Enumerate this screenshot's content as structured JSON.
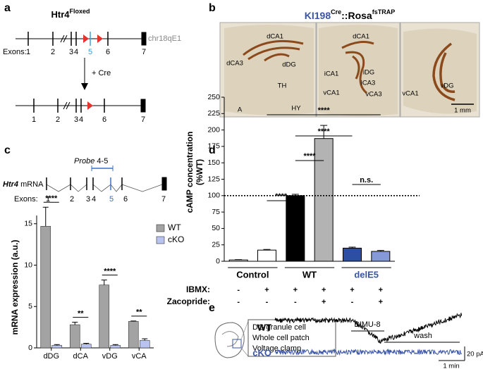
{
  "panel_labels": [
    "a",
    "b",
    "c",
    "d",
    "e"
  ],
  "panel_a": {
    "gene": "Htr4",
    "gene_sup": "Floxed",
    "locus": "chr18qE1",
    "exons_label": "Exons:",
    "exons": [
      "1",
      "2",
      "3",
      "4",
      "5",
      "6",
      "7"
    ],
    "step": "+ Cre",
    "exons_after": [
      "1",
      "2",
      "3",
      "4",
      "6",
      "7"
    ]
  },
  "panel_b": {
    "title_parts": [
      "KI198",
      "Cre",
      "::Rosa",
      "fsTRAP"
    ],
    "sections": [
      [
        "dCA1",
        "dCA3",
        "dDG",
        "TH",
        "A",
        "HY"
      ],
      [
        "dCA1",
        "iCA1",
        "iDG",
        "iCA3",
        "vCA1",
        "vCA3"
      ],
      [
        "vCA1",
        "vDG"
      ]
    ],
    "scale_bar": "1 mm"
  },
  "panel_c": {
    "probe": "Probe",
    "probe_exons": "4-5",
    "transcript": "Htr4",
    "transcript_suffix": "mRNA",
    "exons_label": "Exons:",
    "exons": [
      "1",
      "2",
      "3",
      "4",
      "5",
      "6",
      "7"
    ]
  },
  "panel_e": {
    "cell_box": [
      "DG granule cell",
      "Whole cell patch",
      "Voltage clamp"
    ],
    "traces": [
      "WT",
      "cKO"
    ],
    "drug": "BIMU-8",
    "washout": "wash",
    "scale_y": "20 pA",
    "scale_x": "1 min"
  },
  "chart_data": [
    {
      "type": "bar",
      "ylabel": "mRNA expression (a.u.)",
      "categories": [
        "dDG",
        "dCA",
        "vDG",
        "vCA"
      ],
      "series": [
        {
          "name": "WT",
          "color": "#a3a3a3",
          "values": [
            14.7,
            2.8,
            7.6,
            3.2
          ],
          "errors": [
            2.3,
            0.3,
            0.6,
            0.05
          ]
        },
        {
          "name": "cKO",
          "color": "#b9c3ef",
          "values": [
            0.3,
            0.45,
            0.3,
            0.9
          ],
          "errors": [
            0.1,
            0.1,
            0.1,
            0.2
          ]
        }
      ],
      "ylim": [
        0,
        16
      ],
      "yticks": [
        0,
        5,
        10,
        15
      ],
      "significance": [
        "****",
        "**",
        "****",
        "**"
      ],
      "legend": "upper right"
    },
    {
      "type": "bar",
      "ylabel": "cAMP concentration",
      "ylabel_unit": "(%WT)",
      "categories": [
        null,
        null,
        null,
        null,
        null,
        null
      ],
      "values": [
        2,
        17,
        100,
        187,
        20,
        15
      ],
      "errors": [
        0.5,
        1,
        2,
        20,
        1.5,
        1.5
      ],
      "colors": [
        "#ffffff",
        "#ffffff",
        "#000000",
        "#b3b3b3",
        "#2c4ea3",
        "#8598d8"
      ],
      "ylim": [
        0,
        250
      ],
      "yticks": [
        0,
        25,
        50,
        75,
        100,
        125,
        150,
        175,
        200,
        225,
        250
      ],
      "reference_line": 100,
      "groups": [
        {
          "name": "Control",
          "color": "#000000"
        },
        {
          "name": "WT",
          "color": "#000000"
        },
        {
          "name": "delE5",
          "color": "#3a55a8"
        }
      ],
      "conditions": [
        {
          "name": "IBMX:",
          "values": [
            "-",
            "+",
            "+",
            "+",
            "+",
            "+"
          ]
        },
        {
          "name": "Zacopride:",
          "values": [
            "-",
            "-",
            "-",
            "+",
            "-",
            "+"
          ]
        }
      ],
      "significance": [
        "****",
        "****",
        "****",
        "****",
        "n.s."
      ]
    }
  ]
}
